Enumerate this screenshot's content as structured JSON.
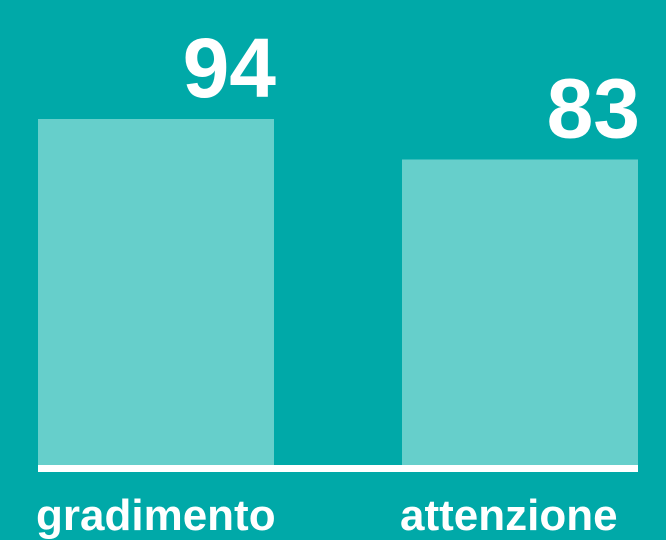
{
  "chart_data": {
    "type": "bar",
    "categories": [
      "gradimento",
      "attenzione"
    ],
    "values": [
      94,
      83
    ],
    "color": "#66cfcb"
  }
}
